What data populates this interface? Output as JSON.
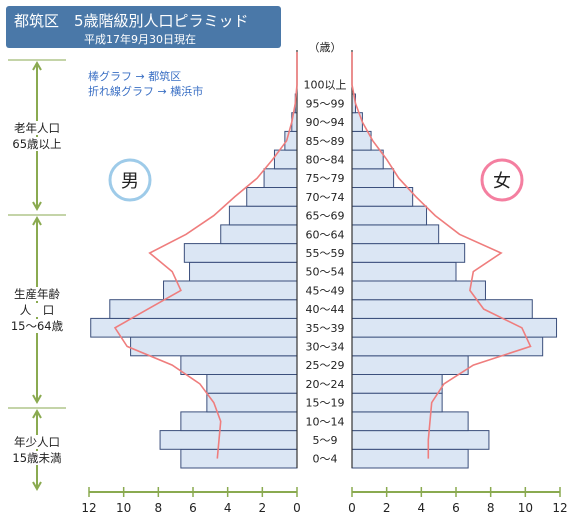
{
  "chart_data": {
    "type": "bar",
    "title": "都筑区　5歳階級別人口ピラミッド",
    "subtitle": "平成17年9月30日現在",
    "legend": [
      "棒グラフ → 都筑区",
      "折れ線グラフ → 横浜市"
    ],
    "unit_label": "（歳）",
    "male_label": "男",
    "female_label": "女",
    "age_groups": [
      "0～4",
      "5～9",
      "10～14",
      "15～19",
      "20～24",
      "25～29",
      "30～34",
      "35～39",
      "40～44",
      "45～49",
      "50～54",
      "55～59",
      "60～64",
      "65～69",
      "70～74",
      "75～79",
      "80～84",
      "85～89",
      "90～94",
      "95～99",
      "100以上"
    ],
    "age_sections": [
      {
        "label": "老年人口\n65歳以上"
      },
      {
        "label": "生産年齢\n人　口\n15～64歳"
      },
      {
        "label": "年少人口\n15歳未満"
      }
    ],
    "series": [
      {
        "name": "男",
        "values": [
          6.7,
          7.9,
          6.7,
          5.2,
          5.2,
          6.7,
          9.6,
          11.9,
          10.8,
          7.7,
          6.2,
          6.5,
          4.4,
          3.9,
          2.9,
          1.9,
          1.3,
          0.7,
          0.3,
          0.1,
          0.0
        ]
      },
      {
        "name": "女",
        "values": [
          6.7,
          7.9,
          6.7,
          5.2,
          5.2,
          6.7,
          11.0,
          11.8,
          10.4,
          7.7,
          6.0,
          6.5,
          5.0,
          4.3,
          3.5,
          2.4,
          1.8,
          1.1,
          0.6,
          0.2,
          0.0
        ]
      },
      {
        "name": "横浜市 男",
        "values": [
          4.6,
          4.5,
          4.4,
          4.8,
          5.6,
          7.2,
          9.8,
          10.5,
          8.6,
          6.7,
          7.2,
          8.5,
          6.4,
          4.8,
          3.6,
          2.3,
          1.4,
          0.6,
          0.3,
          0.1,
          0.0
        ]
      },
      {
        "name": "横浜市 女",
        "values": [
          4.4,
          4.4,
          4.5,
          4.6,
          5.3,
          7.0,
          10.3,
          9.8,
          7.6,
          6.8,
          7.0,
          8.6,
          6.2,
          4.8,
          3.7,
          2.7,
          2.0,
          1.2,
          0.6,
          0.2,
          0.0
        ]
      }
    ],
    "x_ticks_male": [
      "12",
      "10",
      "8",
      "6",
      "4",
      "2",
      "0"
    ],
    "x_ticks_female": [
      "0",
      "2",
      "4",
      "6",
      "8",
      "10",
      "12"
    ],
    "xlim": [
      0,
      12
    ],
    "colors": {
      "bar_fill": "#dbe6f4",
      "bar_stroke": "#3b4f7c",
      "line": "#ef7d7d",
      "bracket": "#8aaa50",
      "male_circle": "#9ecbe9",
      "female_circle": "#f47fa0",
      "title_bg": "#4a78a8",
      "legend_text": "#3a6fc4"
    }
  }
}
